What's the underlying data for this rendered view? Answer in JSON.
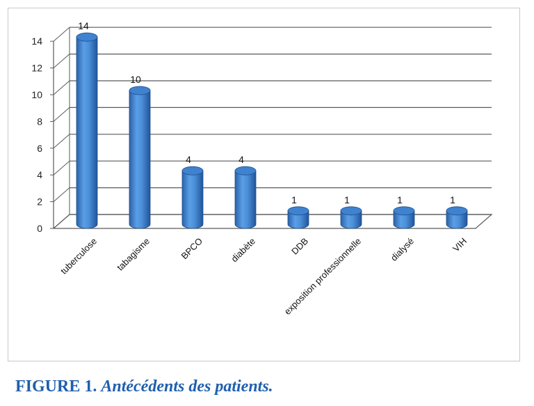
{
  "figure": {
    "label": "FIGURE 1.",
    "title": "Antécédents des patients."
  },
  "colors": {
    "bar": "#4a8fd8",
    "bar_dark": "#2d6bb8",
    "grid": "#5a5a5a"
  },
  "chart_data": {
    "type": "bar",
    "categories": [
      "tuberculose",
      "tabagisme",
      "BPCO",
      "diabète",
      "DDB",
      "exposition professionnelle",
      "dialysé",
      "VIH"
    ],
    "values": [
      14,
      10,
      4,
      4,
      1,
      1,
      1,
      1
    ],
    "value_labels": [
      "14",
      "10",
      "4",
      "4",
      "1",
      "1",
      "1",
      "1"
    ],
    "yticks": [
      "0",
      "2",
      "4",
      "6",
      "8",
      "10",
      "12",
      "14"
    ],
    "ytick_values": [
      0,
      2,
      4,
      6,
      8,
      10,
      12,
      14
    ],
    "ylim": [
      0,
      14
    ],
    "grid": true,
    "style": "3d-cylinder"
  }
}
